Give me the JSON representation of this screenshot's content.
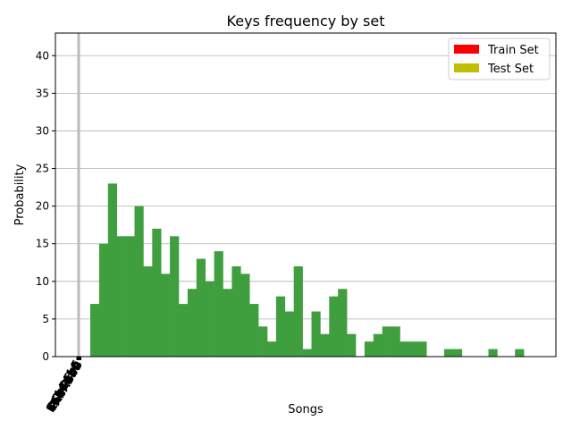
{
  "chart_data": {
    "type": "bar",
    "title": "Keys frequency by set",
    "xlabel": "Songs",
    "ylabel": "Probability",
    "ylim": [
      0,
      43
    ],
    "yticks": [
      0,
      5,
      10,
      15,
      20,
      25,
      30,
      35,
      40
    ],
    "grid": "y",
    "legend_position": "top-right",
    "legend": [
      {
        "name": "Train Set",
        "color": "#ff0000"
      },
      {
        "name": "Test Set",
        "color": "#bfbf00"
      }
    ],
    "bar_color": "#3f9f3f",
    "reference_line_color": "#bbbbbb",
    "values": [
      7,
      15,
      23,
      16,
      16,
      20,
      12,
      17,
      11,
      16,
      7,
      9,
      13,
      10,
      14,
      9,
      12,
      11,
      7,
      4,
      2,
      8,
      6,
      12,
      1,
      6,
      3,
      8,
      9,
      3,
      0,
      2,
      3,
      4,
      4,
      2,
      2,
      2,
      0,
      0,
      1,
      1,
      0,
      0,
      0,
      1,
      0,
      0,
      1
    ],
    "x_tick_glyphs": [
      "DCbDEbE",
      "FGbGAbA",
      "BbBCDbD",
      "EbEFGbG",
      "AbABbB"
    ]
  }
}
